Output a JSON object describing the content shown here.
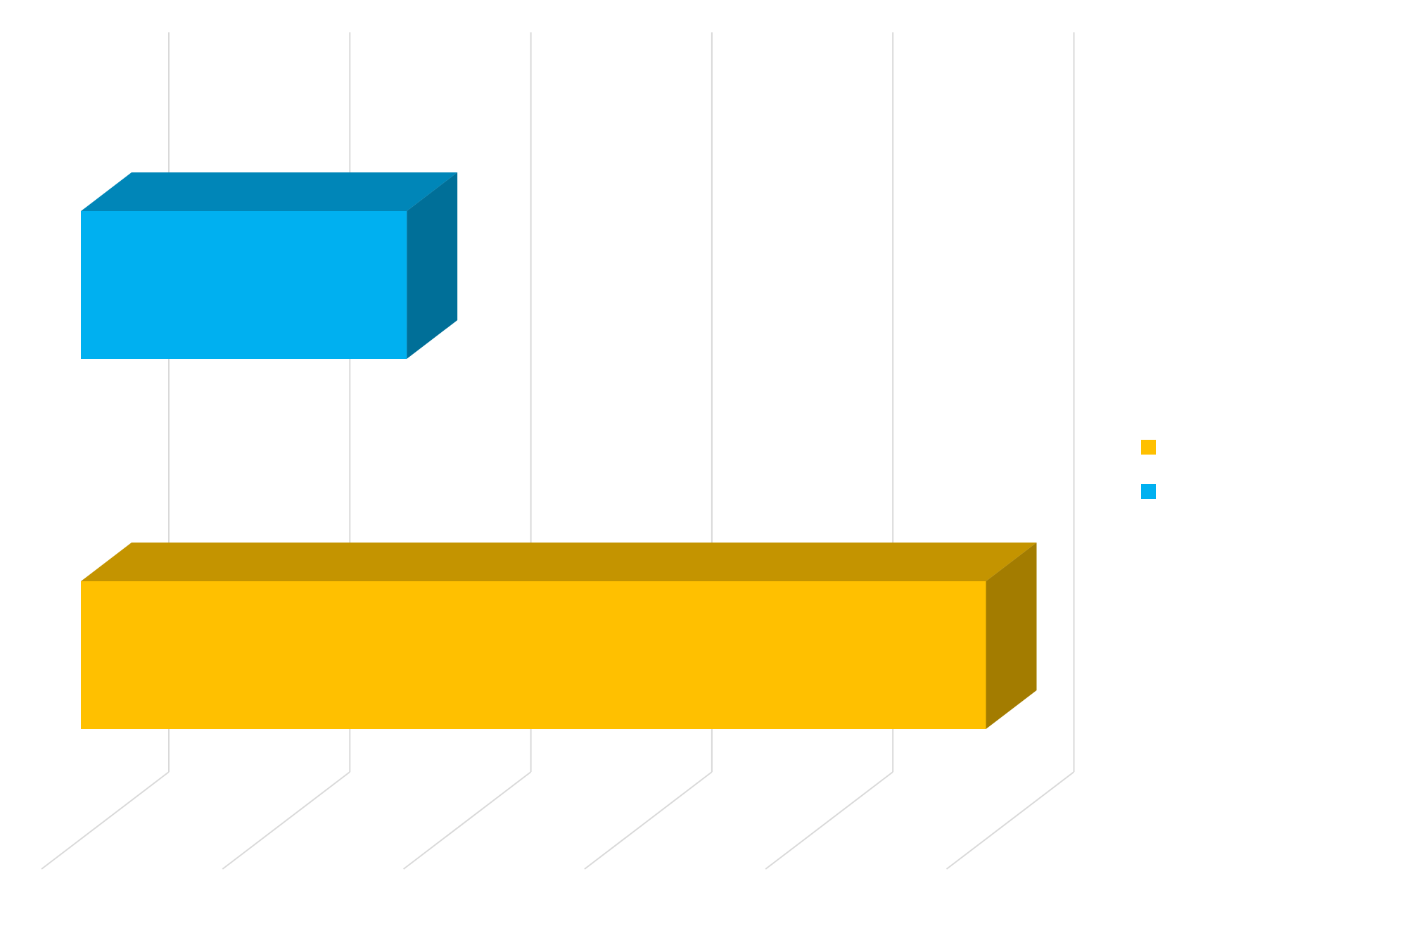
{
  "chart_data": {
    "type": "bar",
    "orientation": "horizontal",
    "three_d": true,
    "categories": [
      "",
      ""
    ],
    "series": [
      {
        "values": [
          1.8,
          0
        ],
        "color": "#00B0F0",
        "top_color": "#0086B8",
        "side_color": "#006F98"
      },
      {
        "values": [
          0,
          5.0
        ],
        "color": "#FFC000",
        "top_color": "#C49400",
        "side_color": "#A37C00"
      }
    ],
    "xlim": [
      0,
      5
    ],
    "grid": true,
    "legend_position": "right",
    "legend": [
      {
        "label": "",
        "color": "#FFC000"
      },
      {
        "label": "",
        "color": "#00B0F0"
      }
    ],
    "title": "",
    "xlabel": "",
    "ylabel": ""
  },
  "colors": {
    "gridline": "#D9D9D9",
    "background": "#FFFFFF"
  }
}
